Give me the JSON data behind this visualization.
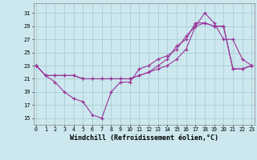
{
  "xlabel": "Windchill (Refroidissement éolien,°C)",
  "bg_color": "#cce8ee",
  "grid_color": "#aaccd4",
  "line_color": "#993399",
  "x_ticks": [
    0,
    1,
    2,
    3,
    4,
    5,
    6,
    7,
    8,
    9,
    10,
    11,
    12,
    13,
    14,
    15,
    16,
    17,
    18,
    19,
    20,
    21,
    22,
    23
  ],
  "y_ticks": [
    15,
    17,
    19,
    21,
    23,
    25,
    27,
    29,
    31
  ],
  "ylim": [
    14.0,
    32.5
  ],
  "xlim": [
    -0.3,
    23.3
  ],
  "line1_y": [
    23,
    21.5,
    20.5,
    19.0,
    18.0,
    17.5,
    15.5,
    15.0,
    19.0,
    20.5,
    20.5,
    22.5,
    23.0,
    24.0,
    24.5,
    25.5,
    27.5,
    29.0,
    31.0,
    29.5,
    27.0,
    27.0,
    24.0,
    23.0
  ],
  "line2_y": [
    23,
    21.5,
    21.5,
    21.5,
    21.5,
    21.0,
    21.0,
    21.0,
    21.0,
    21.0,
    21.0,
    21.5,
    22.0,
    22.5,
    23.0,
    24.0,
    25.5,
    29.0,
    29.5,
    29.0,
    29.0,
    22.5,
    22.5,
    23.0
  ],
  "line3_y": [
    23,
    21.5,
    21.5,
    21.5,
    21.5,
    21.0,
    21.0,
    21.0,
    21.0,
    21.0,
    21.0,
    21.5,
    22.0,
    23.0,
    24.0,
    26.0,
    27.0,
    29.5,
    29.5,
    29.0,
    29.0,
    22.5,
    22.5,
    23.0
  ]
}
